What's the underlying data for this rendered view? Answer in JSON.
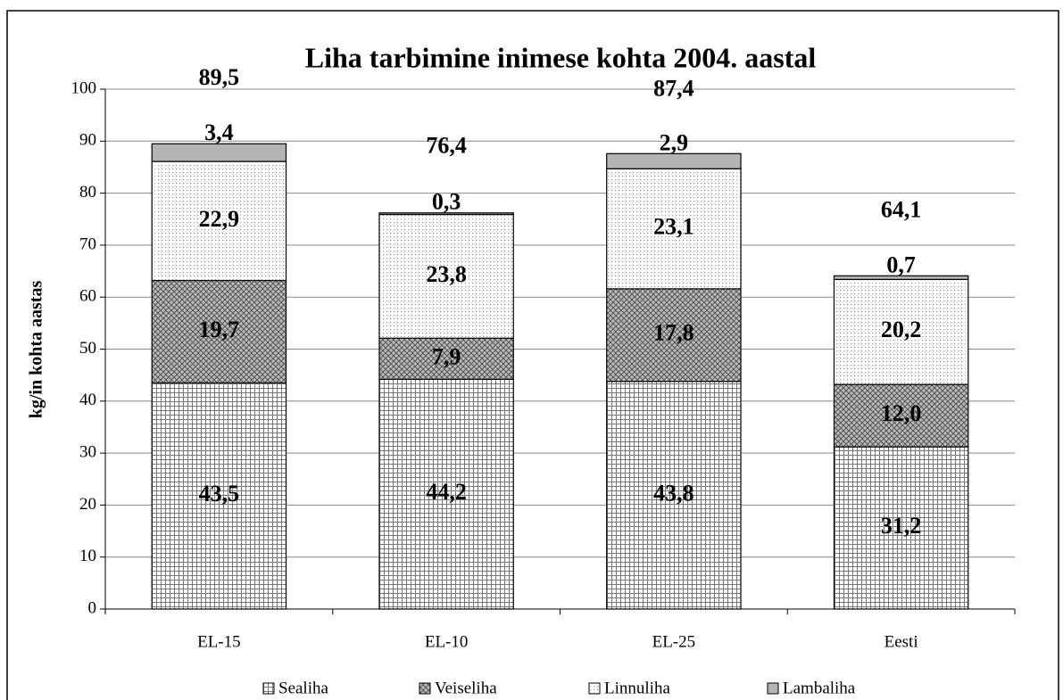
{
  "chart_data": {
    "type": "stacked_bar",
    "title": "Liha tarbimine inimese kohta 2004. aastal",
    "y_label": "kg/in kohta aastas",
    "categories": [
      "EL-15",
      "EL-10",
      "EL-25",
      "Eesti"
    ],
    "series": [
      {
        "name": "Sealiha",
        "color": "#d4d4d4",
        "values": [
          43.5,
          44.2,
          43.8,
          31.2
        ],
        "value_labels": [
          "43,5",
          "44,2",
          "43,8",
          "31,2"
        ]
      },
      {
        "name": "Veiseliha",
        "color": "#a8a8a8",
        "values": [
          19.7,
          7.9,
          17.8,
          12.0
        ],
        "value_labels": [
          "19,7",
          "7,9",
          "17,8",
          "12,0"
        ]
      },
      {
        "name": "Linnuliha",
        "color": "#e6e6e6",
        "values": [
          22.9,
          23.8,
          23.1,
          20.2
        ],
        "value_labels": [
          "22,9",
          "23,8",
          "23,1",
          "20,2"
        ]
      },
      {
        "name": "Lambaliha",
        "color": "#b4b4b4",
        "values": [
          3.4,
          0.3,
          2.9,
          0.7
        ],
        "value_labels": [
          "3,4",
          "0,3",
          "2,9",
          "0,7"
        ]
      }
    ],
    "totals": {
      "values": [
        89.5,
        76.4,
        87.4,
        64.1
      ],
      "value_labels": [
        "89,5",
        "76,4",
        "87,4",
        "64,1"
      ]
    },
    "ylim": [
      0,
      100
    ],
    "yticks": [
      0,
      10,
      20,
      30,
      40,
      50,
      60,
      70,
      80,
      90,
      100
    ],
    "grid": true,
    "legend": "bottom"
  }
}
